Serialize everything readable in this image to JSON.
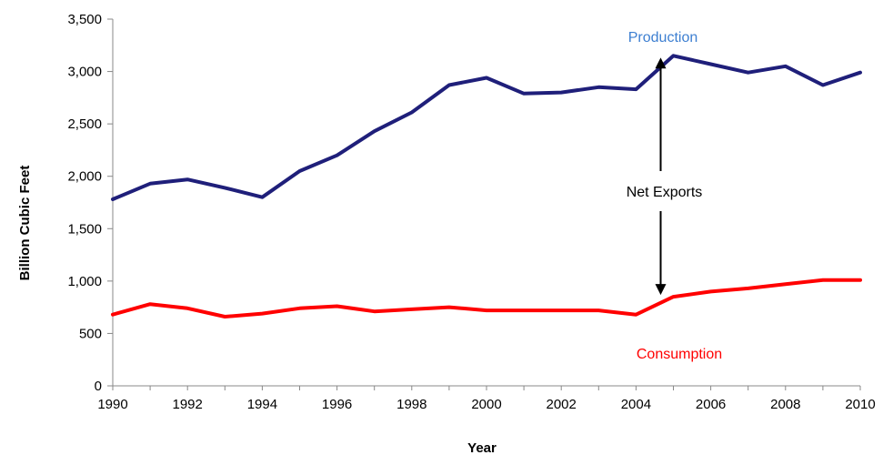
{
  "chart_data": {
    "type": "line",
    "title": "",
    "xlabel": "Year",
    "ylabel": "Billion Cubic Feet",
    "xlim": [
      1990,
      2010
    ],
    "ylim": [
      0,
      3500
    ],
    "x_ticks": [
      1990,
      1992,
      1994,
      1996,
      1998,
      2000,
      2002,
      2004,
      2006,
      2008,
      2010
    ],
    "y_ticks": [
      0,
      500,
      1000,
      1500,
      2000,
      2500,
      3000,
      3500
    ],
    "y_tick_labels": [
      "0",
      "500",
      "1,000",
      "1,500",
      "2,000",
      "2,500",
      "3,000",
      "3,500"
    ],
    "grid": false,
    "x": [
      1990,
      1991,
      1992,
      1993,
      1994,
      1995,
      1996,
      1997,
      1998,
      1999,
      2000,
      2001,
      2002,
      2003,
      2004,
      2005,
      2006,
      2007,
      2008,
      2009,
      2010
    ],
    "series": [
      {
        "name": "Production",
        "color": "#1f1f7a",
        "label_color": "#3d7fd1",
        "values": [
          1780,
          1930,
          1970,
          1890,
          1800,
          2050,
          2200,
          2430,
          2610,
          2870,
          2940,
          2790,
          2800,
          2850,
          2830,
          3150,
          3070,
          2990,
          3050,
          2870,
          2990
        ]
      },
      {
        "name": "Consumption",
        "color": "#ff0000",
        "label_color": "#ff0000",
        "values": [
          680,
          780,
          740,
          660,
          690,
          740,
          760,
          710,
          730,
          750,
          720,
          720,
          720,
          720,
          680,
          850,
          900,
          930,
          970,
          1010,
          1010
        ]
      }
    ],
    "annotations": [
      {
        "text": "Net Exports",
        "x": 2005,
        "y_from": 3150,
        "y_to": 850
      }
    ],
    "legend": "none"
  }
}
